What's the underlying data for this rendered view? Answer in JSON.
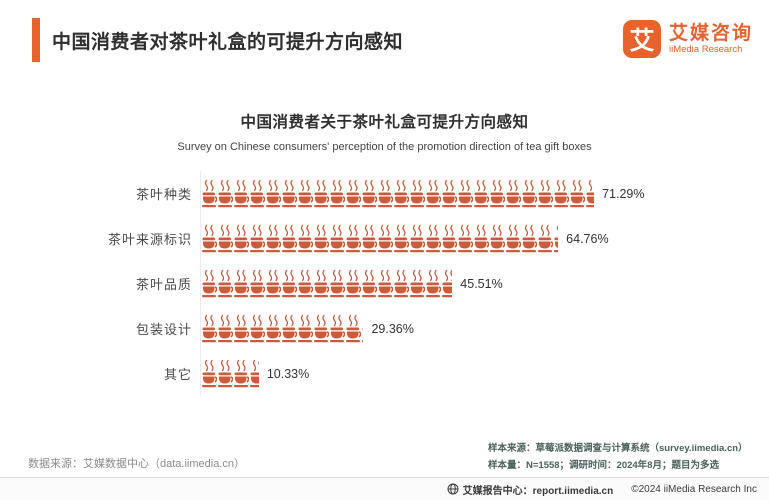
{
  "header": {
    "title": "中国消费者对茶叶礼盒的可提升方向感知"
  },
  "logo": {
    "mark": "艾",
    "name_cn": "艾媒咨询",
    "name_en": "iiMedia Research"
  },
  "chart_data": {
    "type": "bar",
    "variant": "pictogram",
    "icon": "tea-cup",
    "title": "中国消费者关于茶叶礼盒可提升方向感知",
    "subtitle": "Survey on Chinese consumers' perception of the promotion direction of tea gift boxes",
    "categories": [
      "茶叶种类",
      "茶叶来源标识",
      "茶叶品质",
      "包装设计",
      "其它"
    ],
    "values": [
      71.29,
      64.76,
      45.51,
      29.36,
      10.33
    ],
    "value_labels": [
      "71.29%",
      "64.76%",
      "45.51%",
      "29.36%",
      "10.33%"
    ],
    "xlim": [
      0,
      100
    ],
    "grid": false,
    "legend": "none"
  },
  "colors": {
    "accent_orange": "#e8622d",
    "cup_icon": "#cd5a3a",
    "note_teal": "#4a625e"
  },
  "footnotes": {
    "data_source": "数据来源：艾媒数据中心（data.iimedia.cn）",
    "sample_source": "样本来源：草莓派数据调查与计算系统（survey.iimedia.cn）",
    "sample_info": "样本量：N=1558；调研时间：2024年8月；题目为多选"
  },
  "footer": {
    "report_center": "艾媒报告中心：report.iimedia.cn",
    "copyright": "©2024  iiMedia Research Inc"
  }
}
